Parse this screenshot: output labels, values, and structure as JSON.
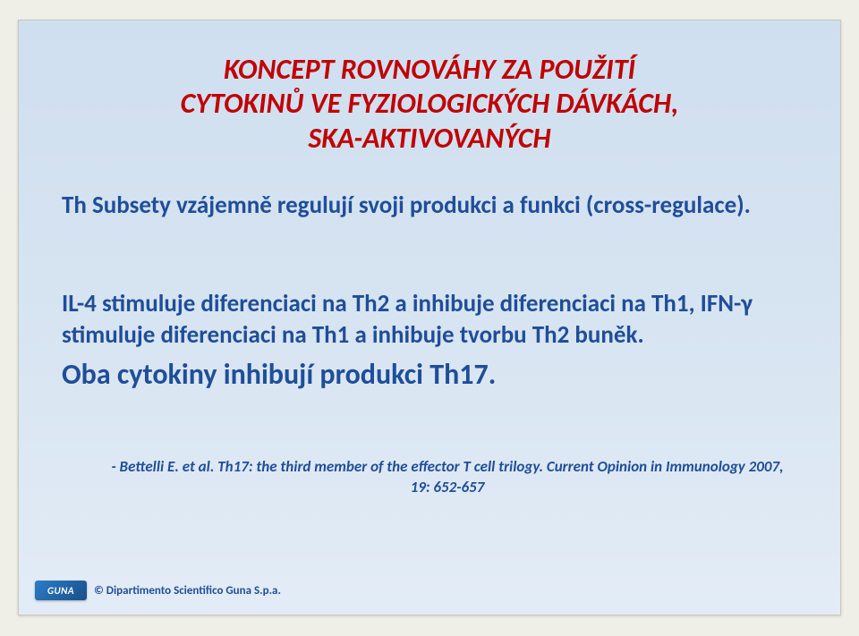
{
  "title_line1": "KONCEPT ROVNOVÁHY ZA POUŽITÍ",
  "title_line2": "CYTOKINŮ VE FYZIOLOGICKÝCH DÁVKÁCH,",
  "title_line3": "SKA-AKTIVOVANÝCH",
  "body1": "Th Subsety vzájemně regulují svoji produkci a funkci (cross-regulace).",
  "body2": "IL-4 stimuluje diferenciaci na Th2 a inhibuje diferenciaci na Th1, IFN-γ stimuluje diferenciaci na Th1 a inhibuje tvorbu Th2 buněk.",
  "body3": "Oba cytokiny inhibují produkci Th17.",
  "ref_prefix": "- ",
  "ref_authors": "Bettelli E. et al. Th17: the third member of the effector T cell trilogy. Current Opinion in Immunology 2007, 19: 652-657",
  "logo_text": "GUNA",
  "copyright": "© Dipartimento Scientifico Guna S.p.a.",
  "colors": {
    "title": "#c00000",
    "body": "#1f4e99",
    "slide_bg_top": "#cfdff0",
    "slide_bg_bottom": "#e3ecf6",
    "page_bg": "#efefe7"
  },
  "fonts": {
    "title_size": 32,
    "body_size": 27,
    "body3_size": 32,
    "ref_size": 17,
    "copyright_size": 13
  }
}
